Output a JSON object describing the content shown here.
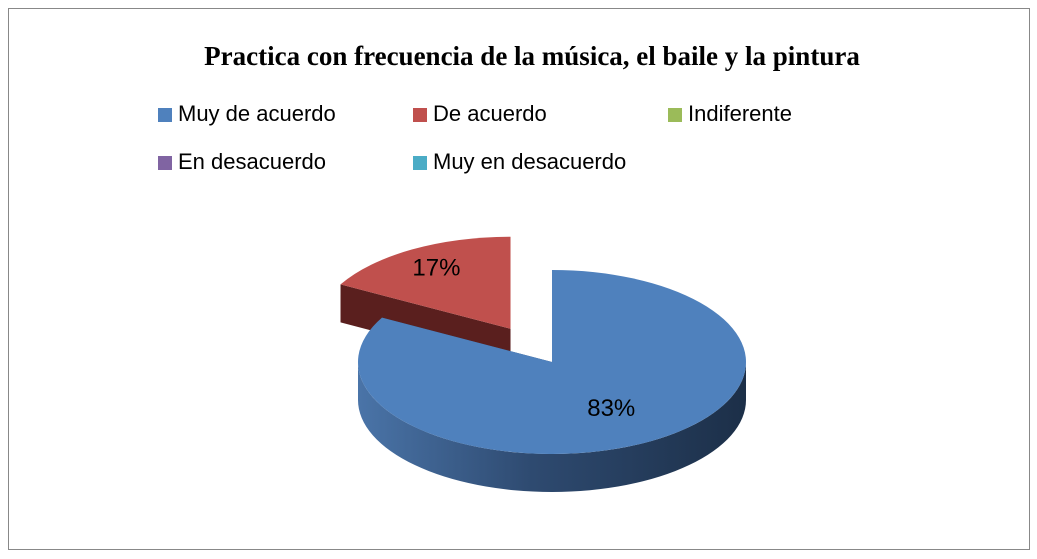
{
  "chart_data": {
    "type": "pie",
    "title": "Practica con frecuencia de la música, el baile y la pintura",
    "categories": [
      "Muy de acuerdo",
      "De acuerdo",
      "Indiferente",
      "En desacuerdo",
      "Muy en desacuerdo"
    ],
    "values": [
      83,
      17,
      0,
      0,
      0
    ],
    "value_labels": [
      "83%",
      "17%",
      null,
      null,
      null
    ],
    "colors": [
      "#4f81bd",
      "#c0504d",
      "#9bbb59",
      "#8064a2",
      "#4bacc6"
    ],
    "legend": "top"
  }
}
